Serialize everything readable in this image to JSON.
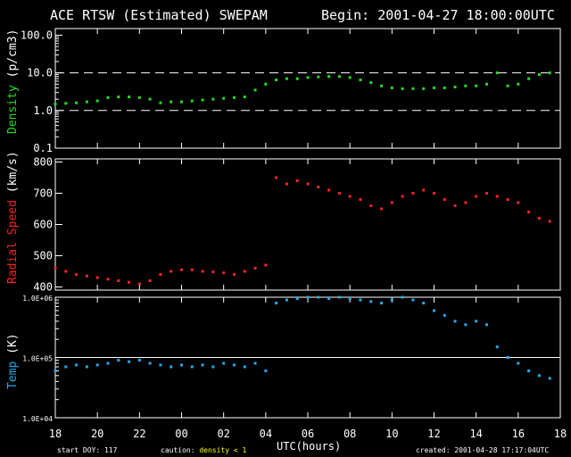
{
  "header": {
    "title": "ACE RTSW (Estimated) SWEPAM",
    "begin": "Begin: 2001-04-27 18:00:00UTC"
  },
  "footer": {
    "start_doy": "start DOY: 117",
    "caution_prefix": "caution:",
    "caution_text": "density < 1",
    "created": "created: 2001-04-28 17:17:04UTC"
  },
  "colors": {
    "density": "#22dd22",
    "speed": "#ff2222",
    "temp": "#22aaee",
    "axes": "#ffffff",
    "caution": "#ffff00"
  },
  "chart_data": [
    {
      "type": "scatter",
      "name": "density",
      "ylabel_parts": [
        {
          "text": "Density",
          "color": "#22dd22"
        },
        {
          "text": " (p/cm3)",
          "color": "#ffffff"
        }
      ],
      "yscale": "log",
      "ylim": [
        0.1,
        150
      ],
      "yticks": [
        0.1,
        1.0,
        10.0,
        100.0
      ],
      "ytick_labels": [
        "0.1",
        "1.0",
        "10.0",
        "100.0"
      ],
      "reference_lines": [
        1.0,
        10.0
      ],
      "reference_style": "dashed",
      "x": [
        0,
        0.5,
        1,
        1.5,
        2,
        2.5,
        3,
        3.5,
        4,
        4.5,
        5,
        5.5,
        6,
        6.5,
        7,
        7.5,
        8,
        8.5,
        9,
        9.5,
        10,
        10.5,
        11,
        11.5,
        12,
        12.5,
        13,
        13.5,
        14,
        14.5,
        15,
        15.5,
        16,
        16.5,
        17,
        17.5,
        18,
        18.5,
        19,
        19.5,
        20,
        20.5,
        21,
        21.5,
        22,
        22.5,
        23,
        23.5
      ],
      "y": [
        1.5,
        1.55,
        1.6,
        1.7,
        1.8,
        2.2,
        2.3,
        2.3,
        2.2,
        2.0,
        1.6,
        1.7,
        1.7,
        1.8,
        1.9,
        2.0,
        2.1,
        2.2,
        2.3,
        3.5,
        5.0,
        6.5,
        7.0,
        7.0,
        7.5,
        7.8,
        8.0,
        8.0,
        7.5,
        6.5,
        5.5,
        4.5,
        4.0,
        3.8,
        3.8,
        3.8,
        4.0,
        4.0,
        4.2,
        4.5,
        4.5,
        5.0,
        10.0,
        4.5,
        5.0,
        7.0,
        9.0,
        10.0
      ]
    },
    {
      "type": "scatter",
      "name": "speed",
      "ylabel_parts": [
        {
          "text": "Radial Speed",
          "color": "#ff2222"
        },
        {
          "text": " (km/s)",
          "color": "#ffffff"
        }
      ],
      "yscale": "linear",
      "ylim": [
        390,
        810
      ],
      "yticks": [
        400,
        500,
        600,
        700,
        800
      ],
      "ytick_labels": [
        "400",
        "500",
        "600",
        "700",
        "800"
      ],
      "x": [
        0,
        0.5,
        1,
        1.5,
        2,
        2.5,
        3,
        3.5,
        4,
        4.5,
        5,
        5.5,
        6,
        6.5,
        7,
        7.5,
        8,
        8.5,
        9,
        9.5,
        10,
        10.5,
        11,
        11.5,
        12,
        12.5,
        13,
        13.5,
        14,
        14.5,
        15,
        15.5,
        16,
        16.5,
        17,
        17.5,
        18,
        18.5,
        19,
        19.5,
        20,
        20.5,
        21,
        21.5,
        22,
        22.5,
        23,
        23.5
      ],
      "y": [
        460,
        450,
        440,
        435,
        430,
        425,
        420,
        415,
        410,
        420,
        440,
        450,
        455,
        455,
        450,
        448,
        445,
        440,
        450,
        460,
        470,
        750,
        730,
        740,
        730,
        720,
        710,
        700,
        690,
        680,
        660,
        650,
        670,
        690,
        700,
        710,
        700,
        680,
        660,
        670,
        690,
        700,
        690,
        680,
        670,
        640,
        620,
        610
      ]
    },
    {
      "type": "scatter",
      "name": "temp",
      "ylabel_parts": [
        {
          "text": "Temp",
          "color": "#22aaee"
        },
        {
          "text": " (K)",
          "color": "#ffffff"
        }
      ],
      "yscale": "log",
      "ylim": [
        10000,
        1000000
      ],
      "yticks": [
        10000,
        100000,
        1000000
      ],
      "ytick_labels": [
        "1.0E+04",
        "1.0E+05",
        "1.0E+06"
      ],
      "reference_lines": [
        100000
      ],
      "reference_style": "solid",
      "x": [
        0,
        0.5,
        1,
        1.5,
        2,
        2.5,
        3,
        3.5,
        4,
        4.5,
        5,
        5.5,
        6,
        6.5,
        7,
        7.5,
        8,
        8.5,
        9,
        9.5,
        10,
        10.5,
        11,
        11.5,
        12,
        12.5,
        13,
        13.5,
        14,
        14.5,
        15,
        15.5,
        16,
        16.5,
        17,
        17.5,
        18,
        18.5,
        19,
        19.5,
        20,
        20.5,
        21,
        21.5,
        22,
        22.5,
        23,
        23.5
      ],
      "y": [
        60000,
        70000,
        75000,
        70000,
        75000,
        80000,
        90000,
        85000,
        90000,
        80000,
        75000,
        70000,
        75000,
        70000,
        75000,
        70000,
        80000,
        75000,
        70000,
        80000,
        60000,
        800000,
        900000,
        950000,
        1000000,
        1000000,
        950000,
        1000000,
        950000,
        900000,
        850000,
        800000,
        900000,
        1000000,
        900000,
        800000,
        600000,
        500000,
        400000,
        350000,
        400000,
        350000,
        150000,
        100000,
        80000,
        60000,
        50000,
        45000
      ]
    }
  ],
  "x_axis": {
    "label": "UTC(hours)",
    "range_hours": [
      0,
      24
    ],
    "ticks": [
      0,
      2,
      4,
      6,
      8,
      10,
      12,
      14,
      16,
      18,
      20,
      22,
      24
    ],
    "tick_labels": [
      "18",
      "20",
      "22",
      "00",
      "02",
      "04",
      "06",
      "08",
      "10",
      "12",
      "14",
      "16",
      "18"
    ]
  }
}
